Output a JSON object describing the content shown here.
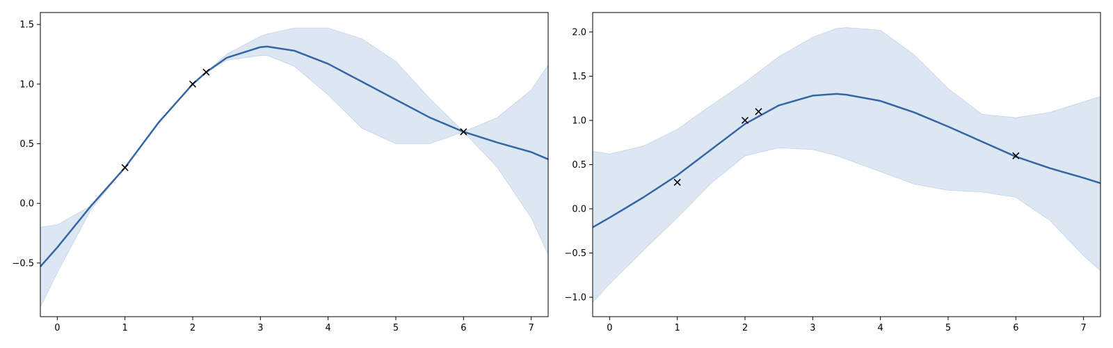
{
  "chart_data": [
    {
      "type": "line",
      "title": "",
      "xlabel": "",
      "ylabel": "",
      "xlim": [
        -0.25,
        7.25
      ],
      "ylim": [
        -0.95,
        1.6
      ],
      "xticks": [
        0,
        1,
        2,
        3,
        4,
        5,
        6,
        7
      ],
      "xtick_labels": [
        "0",
        "1",
        "2",
        "3",
        "4",
        "5",
        "6",
        "7"
      ],
      "yticks": [
        -0.5,
        0.0,
        0.5,
        1.0,
        1.5
      ],
      "ytick_labels": [
        "−0.5",
        "0.0",
        "0.5",
        "1.0",
        "1.5"
      ],
      "grid": false,
      "legend": "none",
      "colors": {
        "mean": "#3465a4",
        "band": "#dde6f3",
        "points": "#000000"
      },
      "observations": {
        "x": [
          1,
          2,
          2.2,
          6
        ],
        "y": [
          0.3,
          1.0,
          1.1,
          0.6
        ]
      },
      "series": [
        {
          "x": [
            -0.25,
            0,
            0.5,
            1,
            1.5,
            2,
            2.2,
            2.5,
            3,
            3.1,
            3.5,
            4,
            4.5,
            5,
            5.5,
            6,
            6.5,
            7,
            7.25
          ],
          "mean": [
            -0.53,
            -0.37,
            -0.02,
            0.3,
            0.68,
            1.0,
            1.1,
            1.22,
            1.31,
            1.315,
            1.28,
            1.17,
            1.02,
            0.87,
            0.72,
            0.6,
            0.51,
            0.43,
            0.37
          ],
          "upper": [
            -0.2,
            -0.18,
            -0.02,
            0.3,
            0.69,
            1.0,
            1.1,
            1.25,
            1.4,
            1.42,
            1.47,
            1.47,
            1.38,
            1.19,
            0.88,
            0.6,
            0.72,
            0.95,
            1.16
          ],
          "lower": [
            -0.87,
            -0.58,
            -0.05,
            0.3,
            0.67,
            1.0,
            1.1,
            1.2,
            1.24,
            1.24,
            1.15,
            0.91,
            0.63,
            0.5,
            0.5,
            0.6,
            0.3,
            -0.12,
            -0.43
          ]
        }
      ]
    },
    {
      "type": "line",
      "title": "",
      "xlabel": "",
      "ylabel": "",
      "xlim": [
        -0.25,
        7.25
      ],
      "ylim": [
        -1.22,
        2.22
      ],
      "xticks": [
        0,
        1,
        2,
        3,
        4,
        5,
        6,
        7
      ],
      "xtick_labels": [
        "0",
        "1",
        "2",
        "3",
        "4",
        "5",
        "6",
        "7"
      ],
      "yticks": [
        -1.0,
        -0.5,
        0.0,
        0.5,
        1.0,
        1.5,
        2.0
      ],
      "ytick_labels": [
        "−1.0",
        "−0.5",
        "0.0",
        "0.5",
        "1.0",
        "1.5",
        "2.0"
      ],
      "grid": false,
      "legend": "none",
      "colors": {
        "mean": "#3465a4",
        "band": "#dde6f3",
        "points": "#000000"
      },
      "observations": {
        "x": [
          1,
          2,
          2.2,
          6
        ],
        "y": [
          0.3,
          1.0,
          1.1,
          0.6
        ]
      },
      "series": [
        {
          "x": [
            -0.25,
            0,
            0.5,
            1,
            1.5,
            2,
            2.5,
            3,
            3.35,
            3.5,
            4,
            4.5,
            5,
            5.5,
            6,
            6.5,
            7,
            7.25
          ],
          "mean": [
            -0.21,
            -0.1,
            0.13,
            0.38,
            0.67,
            0.96,
            1.17,
            1.28,
            1.3,
            1.29,
            1.22,
            1.09,
            0.93,
            0.76,
            0.59,
            0.46,
            0.35,
            0.29
          ],
          "upper": [
            0.65,
            0.62,
            0.71,
            0.9,
            1.17,
            1.43,
            1.72,
            1.94,
            2.04,
            2.05,
            2.02,
            1.74,
            1.36,
            1.07,
            1.03,
            1.09,
            1.21,
            1.27
          ],
          "lower": [
            -1.06,
            -0.85,
            -0.47,
            -0.1,
            0.29,
            0.6,
            0.69,
            0.67,
            0.6,
            0.56,
            0.42,
            0.28,
            0.21,
            0.19,
            0.13,
            -0.13,
            -0.53,
            -0.7
          ]
        }
      ]
    }
  ]
}
